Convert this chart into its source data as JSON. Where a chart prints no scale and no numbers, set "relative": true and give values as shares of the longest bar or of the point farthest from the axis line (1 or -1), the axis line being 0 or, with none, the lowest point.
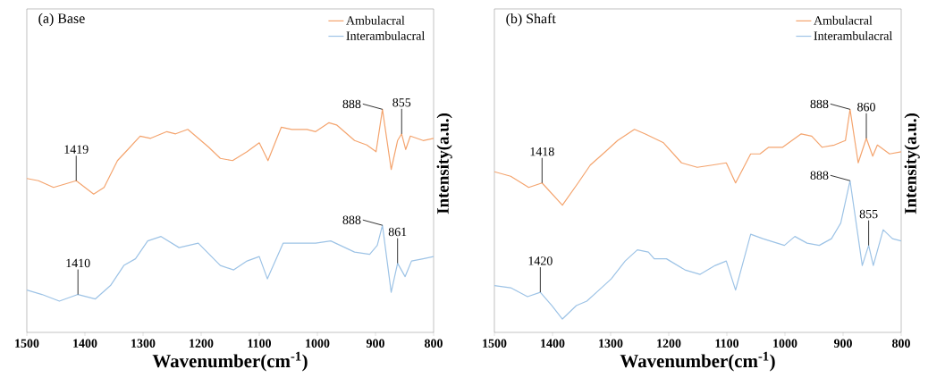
{
  "chart_data": [
    {
      "type": "line",
      "title": "(a) Base",
      "xlabel": "Wavenumber(cm$^{-1}$)",
      "ylabel": "Intensity(a.u.)",
      "relative": true,
      "legend": "top right",
      "xlim": [
        1500,
        800
      ],
      "xticks": [
        1500,
        1400,
        1300,
        1200,
        1100,
        1000,
        900,
        800
      ],
      "series": [
        {
          "name": "Ambulacral",
          "color": "#f4a46e",
          "x": [
            1500,
            1480,
            1454,
            1415,
            1385,
            1367,
            1344,
            1326,
            1305,
            1287,
            1259,
            1244,
            1223,
            1187,
            1167,
            1146,
            1121,
            1100,
            1085,
            1062,
            1044,
            1018,
            1003,
            980,
            967,
            936,
            915,
            899,
            888,
            873,
            862,
            855,
            848,
            840,
            818,
            800
          ],
          "values": [
            0.69,
            0.68,
            0.65,
            0.68,
            0.62,
            0.65,
            0.77,
            0.82,
            0.88,
            0.87,
            0.9,
            0.89,
            0.91,
            0.83,
            0.78,
            0.77,
            0.81,
            0.85,
            0.77,
            0.92,
            0.91,
            0.91,
            0.9,
            0.94,
            0.93,
            0.86,
            0.84,
            0.81,
            1.0,
            0.73,
            0.86,
            0.89,
            0.82,
            0.88,
            0.86,
            0.87
          ]
        },
        {
          "name": "Interambulacral",
          "color": "#9dc3e6",
          "x": [
            1500,
            1474,
            1444,
            1412,
            1382,
            1356,
            1333,
            1313,
            1292,
            1269,
            1238,
            1205,
            1167,
            1144,
            1121,
            1100,
            1086,
            1059,
            1033,
            1003,
            977,
            936,
            910,
            897,
            888,
            873,
            862,
            849,
            838,
            818,
            800
          ],
          "values": [
            0.19,
            0.17,
            0.14,
            0.17,
            0.15,
            0.21,
            0.3,
            0.33,
            0.41,
            0.43,
            0.38,
            0.4,
            0.3,
            0.28,
            0.32,
            0.34,
            0.24,
            0.4,
            0.4,
            0.4,
            0.41,
            0.36,
            0.35,
            0.39,
            0.48,
            0.18,
            0.31,
            0.25,
            0.32,
            0.33,
            0.34
          ]
        }
      ],
      "annotations": [
        {
          "text": "1419",
          "x": 1415,
          "y": 0.68
        },
        {
          "text": "888",
          "x": 888,
          "y": 1.0
        },
        {
          "text": "855",
          "x": 855,
          "y": 0.89
        },
        {
          "text": "1410",
          "x": 1412,
          "y": 0.17
        },
        {
          "text": "888",
          "x": 888,
          "y": 0.48
        },
        {
          "text": "861",
          "x": 862,
          "y": 0.31
        }
      ]
    },
    {
      "type": "line",
      "title": "(b) Shaft",
      "xlabel": "Wavenumber(cm$^{-1}$)",
      "ylabel": "Intensity(a.u.)",
      "relative": true,
      "legend": "top right",
      "xlim": [
        1500,
        800
      ],
      "xticks": [
        1500,
        1400,
        1300,
        1200,
        1100,
        1000,
        900,
        800
      ],
      "series": [
        {
          "name": "Ambulacral",
          "color": "#f4a46e",
          "x": [
            1500,
            1472,
            1441,
            1418,
            1383,
            1356,
            1335,
            1309,
            1288,
            1259,
            1241,
            1209,
            1178,
            1151,
            1125,
            1101,
            1085,
            1059,
            1043,
            1028,
            1004,
            972,
            954,
            936,
            915,
            896,
            888,
            874,
            860,
            849,
            841,
            820,
            800
          ],
          "values": [
            0.72,
            0.7,
            0.65,
            0.67,
            0.57,
            0.67,
            0.75,
            0.81,
            0.86,
            0.91,
            0.89,
            0.85,
            0.76,
            0.74,
            0.75,
            0.76,
            0.67,
            0.8,
            0.8,
            0.83,
            0.83,
            0.89,
            0.88,
            0.83,
            0.84,
            0.86,
            1.0,
            0.76,
            0.87,
            0.79,
            0.84,
            0.8,
            0.81
          ]
        },
        {
          "name": "Interambulacral",
          "color": "#9dc3e6",
          "x": [
            1500,
            1472,
            1443,
            1421,
            1401,
            1383,
            1359,
            1341,
            1320,
            1299,
            1275,
            1254,
            1235,
            1225,
            1204,
            1172,
            1146,
            1120,
            1101,
            1085,
            1059,
            1038,
            1001,
            983,
            962,
            941,
            920,
            904,
            888,
            867,
            856,
            848,
            831,
            815,
            800
          ],
          "values": [
            0.21,
            0.2,
            0.16,
            0.18,
            0.12,
            0.06,
            0.12,
            0.14,
            0.19,
            0.24,
            0.32,
            0.37,
            0.36,
            0.33,
            0.33,
            0.28,
            0.26,
            0.3,
            0.32,
            0.19,
            0.44,
            0.42,
            0.39,
            0.43,
            0.4,
            0.39,
            0.42,
            0.49,
            0.68,
            0.3,
            0.39,
            0.3,
            0.46,
            0.42,
            0.41
          ]
        }
      ],
      "annotations": [
        {
          "text": "1418",
          "x": 1418,
          "y": 0.67
        },
        {
          "text": "888",
          "x": 888,
          "y": 1.0
        },
        {
          "text": "860",
          "x": 860,
          "y": 0.87
        },
        {
          "text": "1420",
          "x": 1421,
          "y": 0.18
        },
        {
          "text": "888",
          "x": 888,
          "y": 0.68
        },
        {
          "text": "855",
          "x": 856,
          "y": 0.39
        }
      ]
    }
  ]
}
